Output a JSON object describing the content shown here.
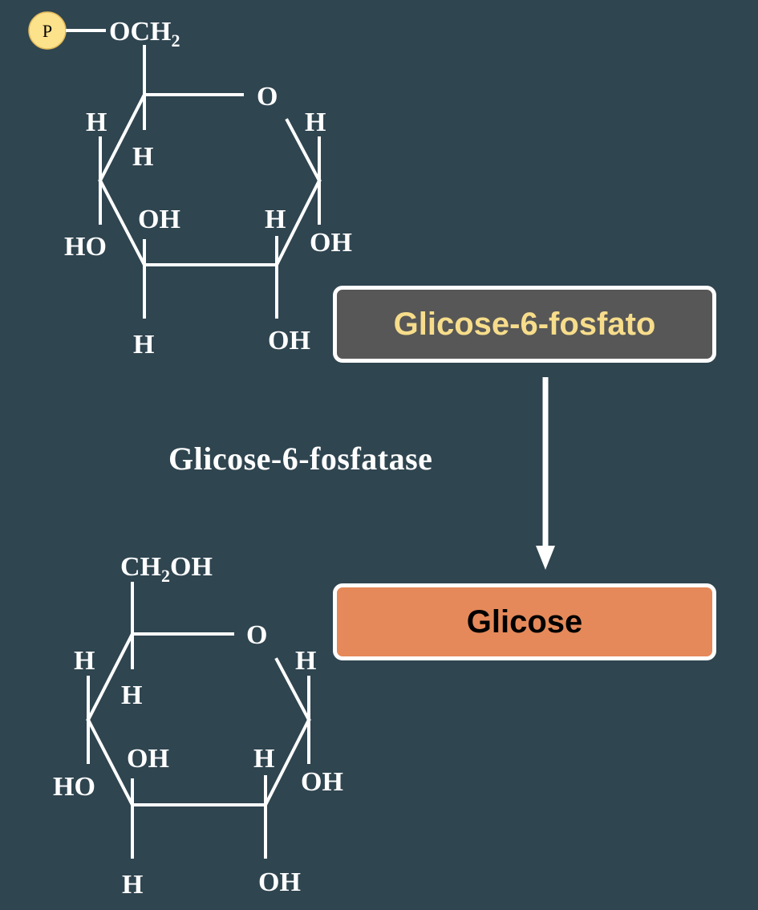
{
  "colors": {
    "background": "#2f4550",
    "glucose6p_box_fill": "#575757",
    "glucose6p_text": "#f7dd8b",
    "glucose_box_fill": "#e5895a",
    "glucose_text": "#000000",
    "phosphate_badge_fill": "#fce28a",
    "border": "#ffffff"
  },
  "glucose6p": {
    "phosphate_badge": "P",
    "group_main": "OCH",
    "group_sub": "2",
    "ring_oxygen": "O",
    "h_c5_upper": "H",
    "h_c5_lower": "H",
    "h_c4": "H",
    "oh_c3": "OH",
    "ho_c4": "HO",
    "h_c3_lower": "H",
    "h_c2": "H",
    "oh_c2": "OH",
    "h_c1": "H",
    "oh_c1": "OH",
    "box_label": "Glicose-6-fosfato"
  },
  "reaction": {
    "enzyme_label": "Glicose-6-fosfatase"
  },
  "glucose": {
    "group_main_a": "CH",
    "group_sub": "2",
    "group_main_b": "OH",
    "ring_oxygen": "O",
    "h_c5_upper": "H",
    "h_c5_lower": "H",
    "h_c4": "H",
    "oh_c3": "OH",
    "ho_c4": "HO",
    "h_c3_lower": "H",
    "h_c2": "H",
    "oh_c2": "OH",
    "h_c1": "H",
    "oh_c1": "OH",
    "box_label": "Glicose"
  }
}
